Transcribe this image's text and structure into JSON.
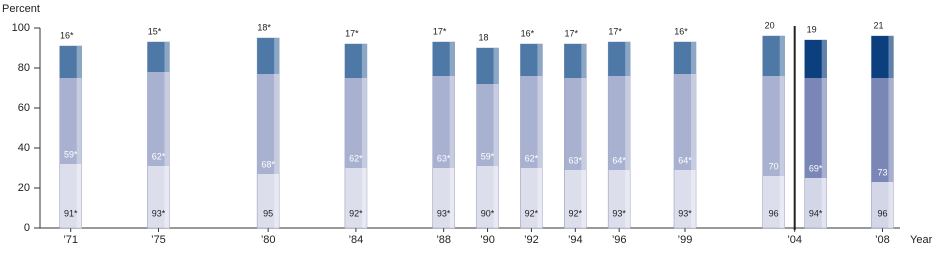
{
  "chart_data": {
    "type": "bar",
    "y_label": "Percent",
    "x_label": "Year",
    "x": [
      1971,
      1975,
      1980,
      1984,
      1988,
      1990,
      1992,
      1994,
      1996,
      1999,
      2004,
      2004,
      2008
    ],
    "xlim": [
      1969.6,
      2008.8
    ],
    "xticks": [
      {
        "value": 1971,
        "label": "’71"
      },
      {
        "value": 1975,
        "label": "’75"
      },
      {
        "value": 1980,
        "label": "’80"
      },
      {
        "value": 1984,
        "label": "’84"
      },
      {
        "value": 1988,
        "label": "’88"
      },
      {
        "value": 1990,
        "label": "’90"
      },
      {
        "value": 1992,
        "label": "’92"
      },
      {
        "value": 1994,
        "label": "’94"
      },
      {
        "value": 1996,
        "label": "’96"
      },
      {
        "value": 1999,
        "label": "’99"
      },
      {
        "value": 2004,
        "label": "’04"
      },
      {
        "value": 2008,
        "label": "’08"
      }
    ],
    "ylim": [
      0,
      100
    ],
    "yticks": [
      0,
      20,
      40,
      60,
      80,
      100
    ],
    "series": [
      {
        "values": [
          91,
          93,
          95,
          92,
          93,
          90,
          92,
          92,
          93,
          93,
          96,
          94,
          96
        ],
        "value_labels": [
          "91*",
          "93*",
          "95",
          "92*",
          "93*",
          "90*",
          "92*",
          "92*",
          "93*",
          "93*",
          "96",
          "94*",
          "96"
        ],
        "colors": [
          "#dcdeeb",
          "#dcdeeb",
          "#dcdeeb",
          "#dcdeeb",
          "#dcdeeb",
          "#dcdeeb",
          "#dcdeeb",
          "#dcdeeb",
          "#dcdeeb",
          "#dcdeeb",
          "#dcdeeb",
          "#d3d6e6",
          "#d3d6e6"
        ]
      },
      {
        "values": [
          59,
          62,
          68,
          62,
          63,
          59,
          62,
          63,
          64,
          64,
          70,
          69,
          73
        ],
        "value_labels": [
          "59*",
          "62*",
          "68*",
          "62*",
          "63*",
          "59*",
          "62*",
          "63*",
          "64*",
          "64*",
          "70",
          "69*",
          "73"
        ],
        "colors": [
          "#a9b1d1",
          "#a9b1d1",
          "#a9b1d1",
          "#a9b1d1",
          "#a9b1d1",
          "#a9b1d1",
          "#a9b1d1",
          "#a9b1d1",
          "#a9b1d1",
          "#a9b1d1",
          "#a9b1d1",
          "#7a86b6",
          "#7a86b6"
        ]
      },
      {
        "values": [
          16,
          15,
          18,
          17,
          17,
          18,
          16,
          17,
          17,
          16,
          20,
          19,
          21
        ],
        "value_labels": [
          "16*",
          "15*",
          "18*",
          "17*",
          "17*",
          "18",
          "16*",
          "17*",
          "17*",
          "16*",
          "20",
          "19",
          "21"
        ],
        "colors": [
          "#4e79a7",
          "#4e79a7",
          "#4e79a7",
          "#4e79a7",
          "#4e79a7",
          "#4e79a7",
          "#4e79a7",
          "#4e79a7",
          "#4e79a7",
          "#4e79a7",
          "#4e79a7",
          "#0b3f7d",
          "#0b3f7d"
        ]
      }
    ]
  }
}
